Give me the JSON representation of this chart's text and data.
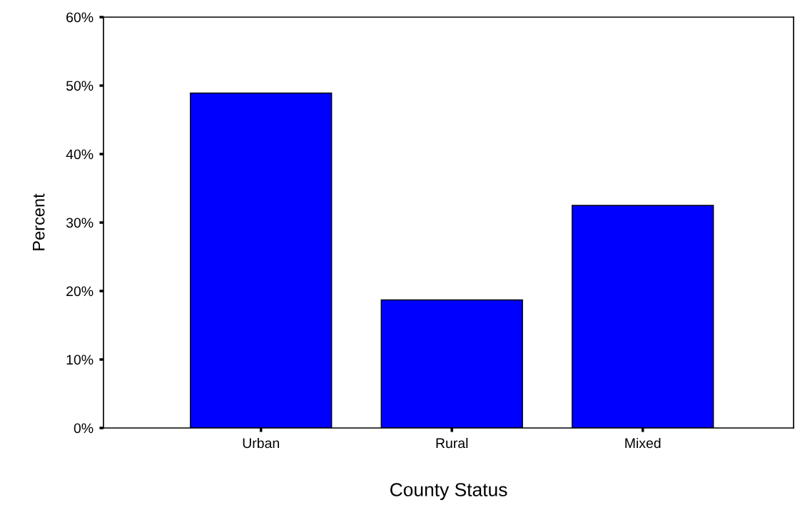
{
  "chart_data": {
    "type": "bar",
    "xlabel": "County Status",
    "ylabel": "Percent",
    "categories": [
      "Urban",
      "Rural",
      "Mixed"
    ],
    "values": [
      48.9,
      18.7,
      32.5
    ],
    "color": "#0000ff",
    "ylim": [
      0,
      60
    ],
    "yticks": [
      {
        "value": 0,
        "label": "0%"
      },
      {
        "value": 10,
        "label": "10%"
      },
      {
        "value": 20,
        "label": "20%"
      },
      {
        "value": 30,
        "label": "30%"
      },
      {
        "value": 40,
        "label": "40%"
      },
      {
        "value": 50,
        "label": "50%"
      },
      {
        "value": 60,
        "label": "60%"
      }
    ],
    "grid": false,
    "legend": false
  }
}
